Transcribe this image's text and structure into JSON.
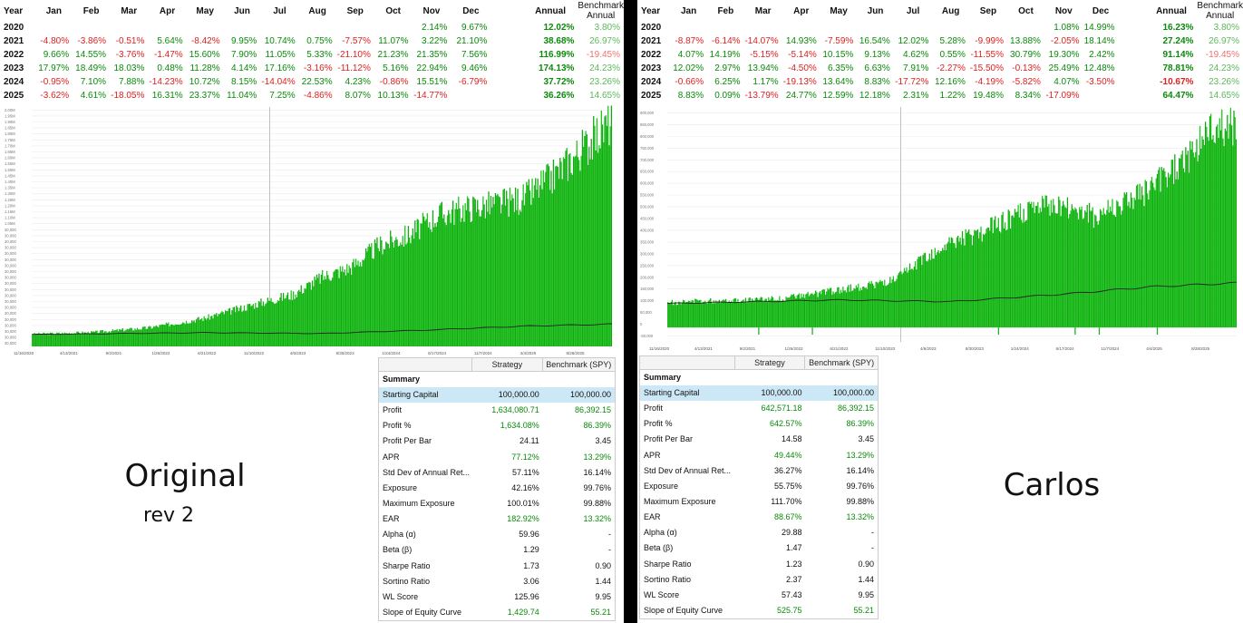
{
  "months": [
    "Jan",
    "Feb",
    "Mar",
    "Apr",
    "May",
    "Jun",
    "Jul",
    "Aug",
    "Sep",
    "Oct",
    "Nov",
    "Dec"
  ],
  "headers": {
    "year": "Year",
    "annual": "Annual",
    "bench": "Benchmark Annual"
  },
  "colors": {
    "positive": "#0a8a0a",
    "negative": "#e02020",
    "bar": "#15b515",
    "selection": "#cce8f6"
  },
  "summary_headers": {
    "section": "Summary",
    "strategy": "Strategy",
    "benchmark": "Benchmark (SPY)"
  },
  "panels": [
    {
      "caption": "Original",
      "subcaption": "rev 2",
      "years": [
        {
          "year": "2020",
          "months": [
            "",
            "",
            "",
            "",
            "",
            "",
            "",
            "",
            "",
            "",
            "2.14%",
            "9.67%"
          ],
          "annual": "12.02%",
          "bench": "3.80%"
        },
        {
          "year": "2021",
          "months": [
            "-4.80%",
            "-3.86%",
            "-0.51%",
            "5.64%",
            "-8.42%",
            "9.95%",
            "10.74%",
            "0.75%",
            "-7.57%",
            "11.07%",
            "3.22%",
            "21.10%"
          ],
          "annual": "38.68%",
          "bench": "26.97%"
        },
        {
          "year": "2022",
          "months": [
            "9.66%",
            "14.55%",
            "-3.76%",
            "-1.47%",
            "15.60%",
            "7.90%",
            "11.05%",
            "5.33%",
            "-21.10%",
            "21.23%",
            "21.35%",
            "7.56%"
          ],
          "annual": "116.99%",
          "bench": "-19.45%"
        },
        {
          "year": "2023",
          "months": [
            "17.97%",
            "18.49%",
            "18.03%",
            "0.48%",
            "11.28%",
            "4.14%",
            "17.16%",
            "-3.16%",
            "-11.12%",
            "5.16%",
            "22.94%",
            "9.46%"
          ],
          "annual": "174.13%",
          "bench": "24.23%"
        },
        {
          "year": "2024",
          "months": [
            "-0.95%",
            "7.10%",
            "7.88%",
            "-14.23%",
            "10.72%",
            "8.15%",
            "-14.04%",
            "22.53%",
            "4.23%",
            "-0.86%",
            "15.51%",
            "-6.79%"
          ],
          "annual": "37.72%",
          "bench": "23.26%"
        },
        {
          "year": "2025",
          "months": [
            "-3.62%",
            "4.61%",
            "-18.05%",
            "16.31%",
            "23.37%",
            "11.04%",
            "7.25%",
            "-4.86%",
            "8.07%",
            "10.13%",
            "-14.77%",
            ""
          ],
          "annual": "36.26%",
          "bench": "14.65%"
        }
      ],
      "chart": {
        "y_ticks": [
          "30,000",
          "30,000",
          "30,000",
          "30,000",
          "30,000",
          "30,000",
          "30,000",
          "30,000",
          "30,000",
          "30,000",
          "30,000",
          "30,000",
          "30,000",
          "30,000",
          "30,000",
          "30,000",
          "30,000",
          "30,000",
          "30,000",
          "30,000",
          "1.05M",
          "1.10M",
          "1.15M",
          "1.20M",
          "1.25M",
          "1.30M",
          "1.35M",
          "1.40M",
          "1.45M",
          "1.50M",
          "1.55M",
          "1.60M",
          "1.65M",
          "1.70M",
          "1.75M",
          "1.80M",
          "1.85M",
          "1.90M",
          "1.95M",
          "2.00M"
        ],
        "x_ticks": [
          "11/16/2020",
          "4/13/2021",
          "9/2/2021",
          "1/26/2022",
          "6/21/2022",
          "11/10/2022",
          "4/6/2023",
          "8/30/2023",
          "1/24/2024",
          "6/17/2024",
          "11/7/2024",
          "4/4/2025",
          "8/28/2025"
        ],
        "y_max": 2000000,
        "equity_points": [
          [
            0,
            100000
          ],
          [
            0.1,
            112000
          ],
          [
            0.2,
            150000
          ],
          [
            0.3,
            230000
          ],
          [
            0.4,
            360000
          ],
          [
            0.45,
            420000
          ],
          [
            0.5,
            560000
          ],
          [
            0.55,
            640000
          ],
          [
            0.6,
            820000
          ],
          [
            0.65,
            900000
          ],
          [
            0.7,
            1060000
          ],
          [
            0.75,
            1120000
          ],
          [
            0.8,
            1150000
          ],
          [
            0.85,
            1200000
          ],
          [
            0.9,
            1380000
          ],
          [
            0.95,
            1600000
          ],
          [
            1,
            1820000
          ]
        ],
        "benchmark_points": [
          [
            0,
            100000
          ],
          [
            0.3,
            115000
          ],
          [
            0.5,
            108000
          ],
          [
            0.7,
            140000
          ],
          [
            0.85,
            170000
          ],
          [
            1,
            186000
          ]
        ]
      },
      "summary": [
        {
          "label": "Starting Capital",
          "v1": "100,000.00",
          "v2": "100,000.00"
        },
        {
          "label": "Profit",
          "v1": "1,634,080.71",
          "v2": "86,392.15"
        },
        {
          "label": "Profit %",
          "v1": "1,634.08%",
          "v2": "86.39%"
        },
        {
          "label": "Profit Per Bar",
          "v1": "24.11",
          "v2": "3.45"
        },
        {
          "label": "APR",
          "v1": "77.12%",
          "v2": "13.29%"
        },
        {
          "label": "Std Dev of Annual Ret...",
          "v1": "57.11%",
          "v2": "16.14%"
        },
        {
          "label": "Exposure",
          "v1": "42.16%",
          "v2": "99.76%"
        },
        {
          "label": "Maximum Exposure",
          "v1": "100.01%",
          "v2": "99.88%"
        },
        {
          "label": "EAR",
          "v1": "182.92%",
          "v2": "13.32%"
        },
        {
          "label": "Alpha (α)",
          "v1": "59.96",
          "v2": "-"
        },
        {
          "label": "Beta (β)",
          "v1": "1.29",
          "v2": "-"
        },
        {
          "label": "Sharpe Ratio",
          "v1": "1.73",
          "v2": "0.90"
        },
        {
          "label": "Sortino Ratio",
          "v1": "3.06",
          "v2": "1.44"
        },
        {
          "label": "WL Score",
          "v1": "125.96",
          "v2": "9.95"
        },
        {
          "label": "Slope of Equity Curve",
          "v1": "1,429.74",
          "v2": "55.21"
        }
      ]
    },
    {
      "caption": "Carlos",
      "subcaption": "",
      "years": [
        {
          "year": "2020",
          "months": [
            "",
            "",
            "",
            "",
            "",
            "",
            "",
            "",
            "",
            "",
            "1.08%",
            "14.99%"
          ],
          "annual": "16.23%",
          "bench": "3.80%"
        },
        {
          "year": "2021",
          "months": [
            "-8.87%",
            "-6.14%",
            "-14.07%",
            "14.93%",
            "-7.59%",
            "16.54%",
            "12.02%",
            "5.28%",
            "-9.99%",
            "13.88%",
            "-2.05%",
            "18.14%"
          ],
          "annual": "27.24%",
          "bench": "26.97%"
        },
        {
          "year": "2022",
          "months": [
            "4.07%",
            "14.19%",
            "-5.15%",
            "-5.14%",
            "10.15%",
            "9.13%",
            "4.62%",
            "0.55%",
            "-11.55%",
            "30.79%",
            "19.30%",
            "2.42%"
          ],
          "annual": "91.14%",
          "bench": "-19.45%"
        },
        {
          "year": "2023",
          "months": [
            "12.02%",
            "2.97%",
            "13.94%",
            "-4.50%",
            "6.35%",
            "6.63%",
            "7.91%",
            "-2.27%",
            "-15.50%",
            "-0.13%",
            "25.49%",
            "12.48%"
          ],
          "annual": "78.81%",
          "bench": "24.23%"
        },
        {
          "year": "2024",
          "months": [
            "-0.66%",
            "6.25%",
            "1.17%",
            "-19.13%",
            "13.64%",
            "8.83%",
            "-17.72%",
            "12.16%",
            "-4.19%",
            "-5.82%",
            "4.07%",
            "-3.50%"
          ],
          "annual": "-10.67%",
          "bench": "23.26%"
        },
        {
          "year": "2025",
          "months": [
            "8.83%",
            "0.09%",
            "-13.79%",
            "24.77%",
            "12.59%",
            "12.18%",
            "2.31%",
            "1.22%",
            "19.48%",
            "8.34%",
            "-17.09%",
            ""
          ],
          "annual": "64.47%",
          "bench": "14.65%"
        }
      ],
      "chart": {
        "y_ticks": [
          "-50,000",
          "0",
          "50,000",
          "100,000",
          "150,000",
          "200,000",
          "250,000",
          "300,000",
          "350,000",
          "400,000",
          "450,000",
          "500,000",
          "550,000",
          "600,000",
          "650,000",
          "700,000",
          "750,000",
          "800,000",
          "850,000",
          "900,000"
        ],
        "x_ticks": [
          "11/16/2020",
          "4/13/2021",
          "9/2/2021",
          "1/26/2022",
          "6/21/2022",
          "11/10/2022",
          "4/6/2023",
          "8/30/2023",
          "1/24/2024",
          "6/17/2024",
          "11/7/2024",
          "4/4/2025",
          "8/28/2025"
        ],
        "y_max": 920000,
        "y_min": -60000,
        "equity_points": [
          [
            0,
            100000
          ],
          [
            0.1,
            110000
          ],
          [
            0.2,
            115000
          ],
          [
            0.3,
            150000
          ],
          [
            0.4,
            190000
          ],
          [
            0.45,
            280000
          ],
          [
            0.5,
            340000
          ],
          [
            0.55,
            380000
          ],
          [
            0.6,
            440000
          ],
          [
            0.65,
            480000
          ],
          [
            0.7,
            490000
          ],
          [
            0.75,
            450000
          ],
          [
            0.8,
            500000
          ],
          [
            0.85,
            560000
          ],
          [
            0.9,
            650000
          ],
          [
            0.95,
            790000
          ],
          [
            1,
            820000
          ]
        ],
        "benchmark_points": [
          [
            0,
            100000
          ],
          [
            0.3,
            115000
          ],
          [
            0.5,
            108000
          ],
          [
            0.7,
            140000
          ],
          [
            0.85,
            170000
          ],
          [
            1,
            186000
          ]
        ]
      },
      "summary": [
        {
          "label": "Starting Capital",
          "v1": "100,000.00",
          "v2": "100,000.00"
        },
        {
          "label": "Profit",
          "v1": "642,571.18",
          "v2": "86,392.15"
        },
        {
          "label": "Profit %",
          "v1": "642.57%",
          "v2": "86.39%"
        },
        {
          "label": "Profit Per Bar",
          "v1": "14.58",
          "v2": "3.45"
        },
        {
          "label": "APR",
          "v1": "49.44%",
          "v2": "13.29%"
        },
        {
          "label": "Std Dev of Annual Ret...",
          "v1": "36.27%",
          "v2": "16.14%"
        },
        {
          "label": "Exposure",
          "v1": "55.75%",
          "v2": "99.76%"
        },
        {
          "label": "Maximum Exposure",
          "v1": "111.70%",
          "v2": "99.88%"
        },
        {
          "label": "EAR",
          "v1": "88.67%",
          "v2": "13.32%"
        },
        {
          "label": "Alpha (α)",
          "v1": "29.88",
          "v2": "-"
        },
        {
          "label": "Beta (β)",
          "v1": "1.47",
          "v2": "-"
        },
        {
          "label": "Sharpe Ratio",
          "v1": "1.23",
          "v2": "0.90"
        },
        {
          "label": "Sortino Ratio",
          "v1": "2.37",
          "v2": "1.44"
        },
        {
          "label": "WL Score",
          "v1": "57.43",
          "v2": "9.95"
        },
        {
          "label": "Slope of Equity Curve",
          "v1": "525.75",
          "v2": "55.21"
        }
      ]
    }
  ]
}
